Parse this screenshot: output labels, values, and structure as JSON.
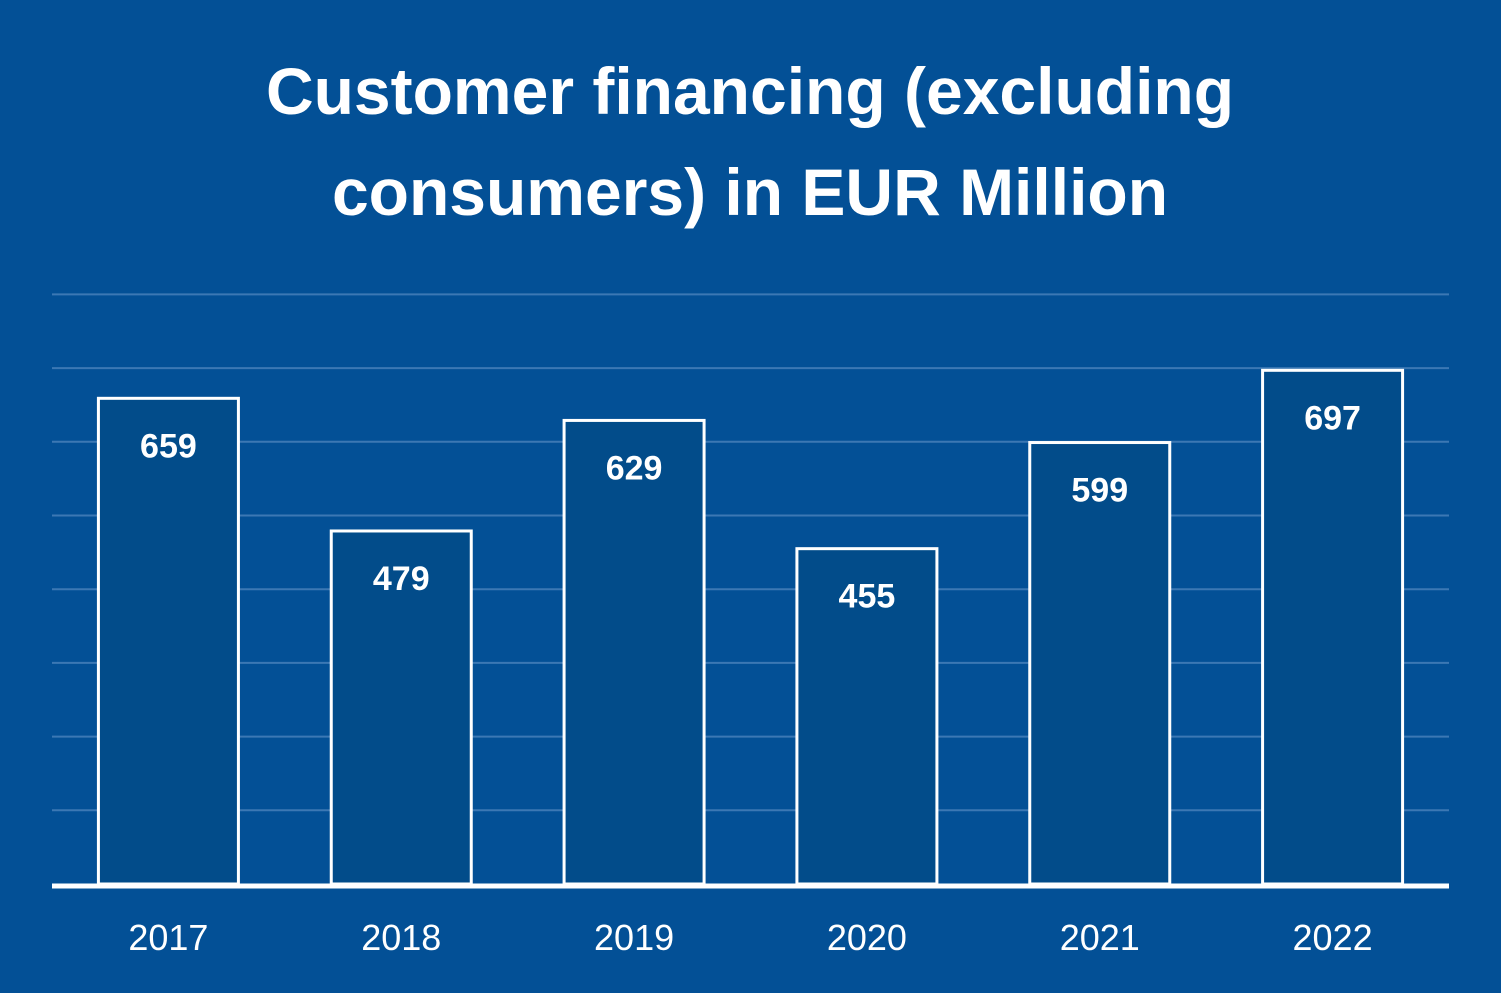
{
  "colors": {
    "background": "#035096",
    "bar_fill": "#024C8A",
    "bar_stroke": "#ffffff",
    "gridline": "#3C78B4",
    "axis": "#ffffff",
    "text": "#ffffff"
  },
  "chart_data": {
    "type": "bar",
    "title_lines": [
      "Customer financing (excluding",
      "consumers) in EUR Million"
    ],
    "categories": [
      "2017",
      "2018",
      "2019",
      "2020",
      "2021",
      "2022"
    ],
    "values": [
      659,
      479,
      629,
      455,
      599,
      697
    ],
    "data_labels": [
      "659",
      "479",
      "629",
      "455",
      "599",
      "697"
    ],
    "ylim": [
      0,
      800
    ],
    "ytick_step": 100,
    "grid": true,
    "legend": false,
    "xlabel": "",
    "ylabel": ""
  }
}
